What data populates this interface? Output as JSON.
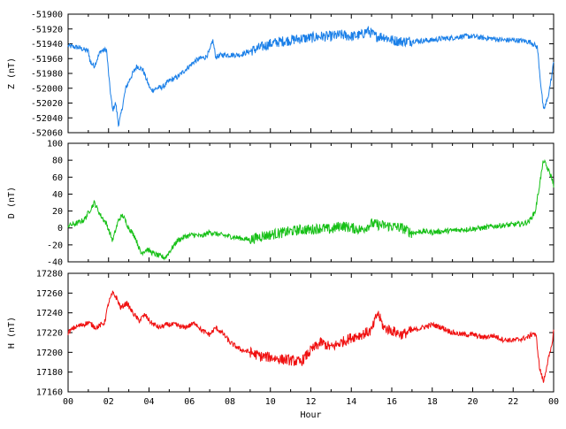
{
  "chart_data": {
    "type": "line",
    "xlabel": "Hour",
    "x_tick_labels": [
      "00",
      "02",
      "04",
      "06",
      "08",
      "10",
      "12",
      "14",
      "16",
      "18",
      "20",
      "22",
      "00"
    ],
    "xlim": [
      0,
      24
    ],
    "panels": [
      {
        "ylabel": "Z (nT)",
        "color": "#1a7fe8",
        "ylim": [
          -52060,
          -51900
        ],
        "yticks": [
          -51900,
          -51920,
          -51940,
          -51960,
          -51980,
          -52000,
          -52020,
          -52040,
          -52060
        ],
        "series": [
          {
            "x": [
              0,
              0.5,
              1.0,
              1.1,
              1.3,
              1.6,
              1.9,
              2.05,
              2.2,
              2.35,
              2.5,
              2.65,
              2.85,
              3.1,
              3.4,
              3.7,
              3.9,
              4.1,
              4.4,
              4.7,
              5.0,
              5.4,
              5.8,
              6.2,
              6.5,
              6.8,
              7.0,
              7.15,
              7.3,
              7.6,
              8.0,
              8.5,
              9.0,
              9.5,
              10.0,
              10.5,
              11.0,
              11.5,
              12.0,
              12.5,
              13.0,
              13.5,
              14.0,
              14.5,
              14.8,
              15.2,
              15.6,
              16.0,
              16.5,
              17.0,
              17.5,
              18.0,
              18.5,
              19.0,
              19.5,
              20.0,
              20.5,
              21.0,
              21.5,
              22.0,
              22.5,
              22.9,
              23.2,
              23.35,
              23.5,
              23.7,
              23.9,
              24.0
            ],
            "y": [
              -51943,
              -51945,
              -51950,
              -51965,
              -51970,
              -51950,
              -51948,
              -51995,
              -52030,
              -52020,
              -52050,
              -52030,
              -52000,
              -51985,
              -51970,
              -51975,
              -51990,
              -52003,
              -52000,
              -51998,
              -51990,
              -51985,
              -51975,
              -51965,
              -51960,
              -51958,
              -51950,
              -51935,
              -51958,
              -51955,
              -51955,
              -51955,
              -51950,
              -51945,
              -51940,
              -51937,
              -51935,
              -51933,
              -51932,
              -51930,
              -51930,
              -51928,
              -51930,
              -51928,
              -51922,
              -51930,
              -51930,
              -51935,
              -51937,
              -51936,
              -51936,
              -51935,
              -51933,
              -51932,
              -51930,
              -51930,
              -51932,
              -51933,
              -51935,
              -51935,
              -51936,
              -51938,
              -51945,
              -51990,
              -52030,
              -52015,
              -51985,
              -51965
            ]
          }
        ]
      },
      {
        "ylabel": "D (nT)",
        "color": "#16c016",
        "ylim": [
          -40,
          100
        ],
        "yticks": [
          100,
          80,
          60,
          40,
          20,
          0,
          -20,
          -40
        ],
        "series": [
          {
            "x": [
              0,
              0.4,
              0.8,
              1.1,
              1.3,
              1.6,
              1.9,
              2.2,
              2.5,
              2.7,
              3.0,
              3.3,
              3.6,
              3.9,
              4.2,
              4.5,
              4.8,
              5.1,
              5.4,
              5.8,
              6.2,
              6.6,
              7.0,
              7.5,
              8.0,
              8.5,
              9.0,
              9.5,
              10.0,
              10.5,
              11.0,
              11.5,
              12.0,
              12.5,
              13.0,
              13.5,
              14.0,
              14.5,
              15.0,
              15.5,
              16.0,
              16.5,
              17.0,
              17.5,
              18.0,
              18.5,
              19.0,
              19.5,
              20.0,
              20.5,
              21.0,
              21.5,
              22.0,
              22.5,
              22.8,
              23.1,
              23.3,
              23.5,
              23.7,
              23.9,
              24.0
            ],
            "y": [
              3,
              5,
              10,
              22,
              30,
              15,
              5,
              -15,
              10,
              15,
              0,
              -10,
              -30,
              -25,
              -30,
              -33,
              -35,
              -25,
              -15,
              -10,
              -8,
              -10,
              -5,
              -8,
              -10,
              -12,
              -14,
              -10,
              -8,
              -6,
              -4,
              -2,
              -2,
              0,
              -2,
              3,
              0,
              -2,
              5,
              3,
              2,
              0,
              -6,
              -4,
              -5,
              -4,
              -3,
              -2,
              -1,
              0,
              2,
              3,
              4,
              5,
              8,
              20,
              50,
              80,
              70,
              60,
              50
            ]
          }
        ]
      },
      {
        "ylabel": "H (nT)",
        "color": "#f01010",
        "ylim": [
          17160,
          17280
        ],
        "yticks": [
          17280,
          17260,
          17240,
          17220,
          17200,
          17180,
          17160
        ],
        "series": [
          {
            "x": [
              0,
              0.3,
              0.7,
              1.0,
              1.4,
              1.8,
              2.0,
              2.2,
              2.4,
              2.6,
              2.9,
              3.2,
              3.5,
              3.8,
              4.1,
              4.5,
              4.9,
              5.3,
              5.7,
              6.0,
              6.3,
              6.6,
              7.0,
              7.3,
              7.7,
              8.0,
              8.5,
              9.0,
              9.5,
              10.0,
              10.5,
              11.0,
              11.5,
              12.0,
              12.5,
              13.0,
              13.5,
              14.0,
              14.5,
              15.0,
              15.3,
              15.6,
              16.0,
              16.5,
              17.0,
              17.5,
              18.0,
              18.5,
              19.0,
              19.5,
              20.0,
              20.5,
              21.0,
              21.5,
              22.0,
              22.5,
              22.8,
              23.0,
              23.15,
              23.3,
              23.5,
              23.7,
              23.9,
              24.0
            ],
            "y": [
              17220,
              17225,
              17228,
              17230,
              17225,
              17230,
              17250,
              17260,
              17255,
              17245,
              17250,
              17240,
              17232,
              17238,
              17230,
              17225,
              17228,
              17228,
              17225,
              17227,
              17230,
              17222,
              17218,
              17225,
              17218,
              17210,
              17203,
              17200,
              17196,
              17195,
              17193,
              17192,
              17190,
              17202,
              17210,
              17205,
              17210,
              17215,
              17218,
              17222,
              17240,
              17225,
              17222,
              17218,
              17222,
              17225,
              17228,
              17225,
              17220,
              17218,
              17218,
              17215,
              17217,
              17213,
              17212,
              17214,
              17216,
              17220,
              17215,
              17185,
              17170,
              17190,
              17205,
              17222
            ]
          }
        ]
      }
    ]
  }
}
